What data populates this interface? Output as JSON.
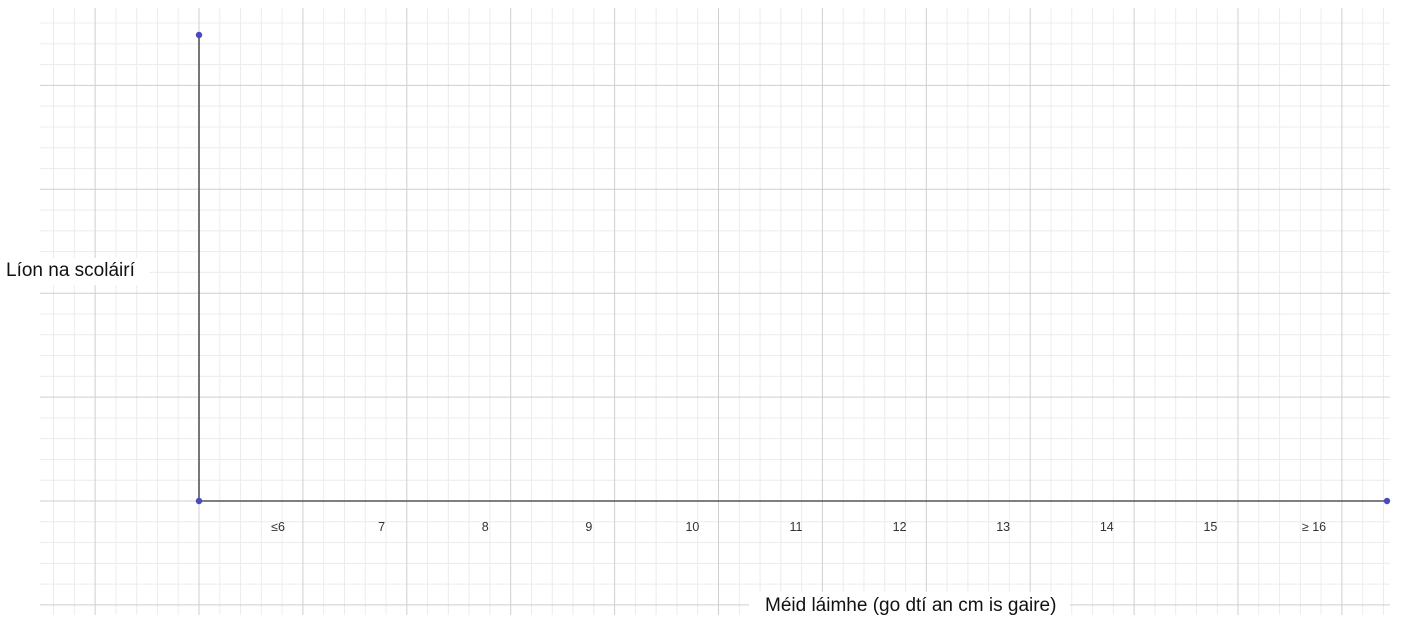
{
  "diagram": {
    "y_axis_title": "Líon na scoláirí",
    "x_axis_title": "Méid láimhe (go dtí an cm is gaire)",
    "x_tick_labels": [
      "≤6",
      "7",
      "8",
      "9",
      "10",
      "11",
      "12",
      "13",
      "14",
      "15",
      "≥ 16"
    ],
    "colors": {
      "axis": "#555555",
      "points": "#4a4ac0",
      "grid_major": "#cfcfcf",
      "grid_minor": "#ececec"
    }
  }
}
